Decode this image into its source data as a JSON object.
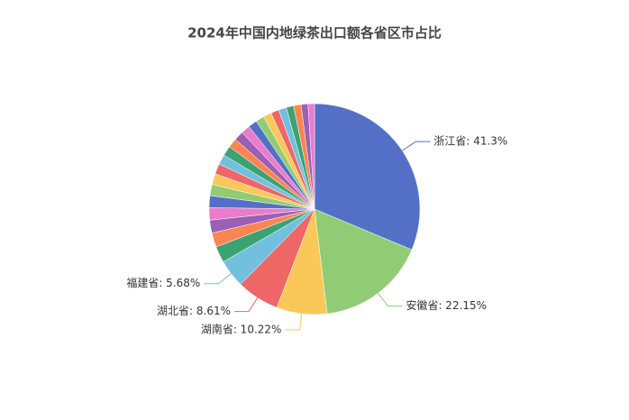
{
  "chart_data": {
    "type": "pie",
    "title": "2024年中国内地绿茶出口额各省区市占比",
    "values": [
      41.3,
      22.15,
      10.22,
      8.61,
      5.68,
      3.3,
      2.9,
      2.6,
      2.5,
      2.4,
      2.3,
      2.2,
      2.1,
      2.0,
      2.0,
      1.9,
      1.9,
      1.8,
      1.8,
      1.7,
      1.7,
      1.6,
      1.6,
      1.5,
      1.5,
      1.4,
      1.3
    ],
    "value_labels": [
      "浙江省: 41.3%",
      "安徽省: 22.15%",
      "湖南省: 10.22%",
      "湖北省: 8.61%",
      "福建省: 5.68%",
      null,
      null,
      null,
      null,
      null,
      null,
      null,
      null,
      null,
      null,
      null,
      null,
      null,
      null,
      null,
      null,
      null,
      null,
      null,
      null,
      null,
      null
    ],
    "colors": [
      "#5470c6",
      "#91cc75",
      "#fac858",
      "#ee6666",
      "#73c0de",
      "#3ba272",
      "#fc8452",
      "#9a60b4",
      "#ea7ccc"
    ]
  }
}
